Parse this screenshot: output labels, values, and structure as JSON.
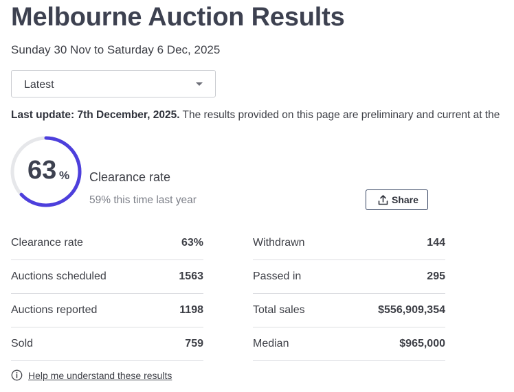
{
  "page": {
    "title": "Melbourne Auction Results",
    "date_range": "Sunday 30 Nov to Saturday 6 Dec, 2025"
  },
  "filter": {
    "selected": "Latest"
  },
  "update": {
    "label": "Last update: 7th December, 2025.",
    "text": " The results provided on this page are preliminary and current at the"
  },
  "clearance": {
    "value": "63",
    "unit": "%",
    "fraction": 0.63,
    "label": "Clearance rate",
    "last_year": "59% this time last year",
    "accent_color": "#4d3fdc",
    "track_color": "#e6e7ea"
  },
  "share": {
    "label": "Share"
  },
  "stats_left": [
    {
      "label": "Clearance rate",
      "value": "63%"
    },
    {
      "label": "Auctions scheduled",
      "value": "1563"
    },
    {
      "label": "Auctions reported",
      "value": "1198"
    },
    {
      "label": "Sold",
      "value": "759"
    }
  ],
  "stats_right": [
    {
      "label": "Withdrawn",
      "value": "144"
    },
    {
      "label": "Passed in",
      "value": "295"
    },
    {
      "label": "Total sales",
      "value": "$556,909,354"
    },
    {
      "label": "Median",
      "value": "$965,000"
    }
  ],
  "help": {
    "label": "Help me understand these results",
    "icon": "info-icon"
  }
}
